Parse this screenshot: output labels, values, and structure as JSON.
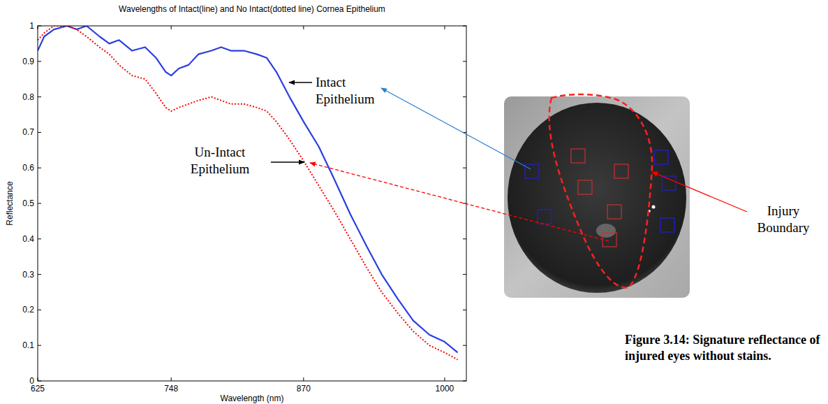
{
  "chart_data": {
    "type": "line",
    "title": "Wavelengths of Intact(line) and No Intact(dotted line) Cornea Epithelium",
    "x_label": "Wavelength (nm)",
    "y_label": "Reflectance",
    "x": [
      625,
      631,
      640,
      652,
      661,
      670,
      682,
      691,
      700,
      712,
      724,
      734,
      743,
      748,
      755,
      764,
      773,
      785,
      794,
      803,
      815,
      827,
      836,
      845,
      857,
      870,
      884,
      898,
      913,
      928,
      942,
      957,
      971,
      986,
      1000,
      1012
    ],
    "series": [
      {
        "name": "Intact",
        "color": "#2b3fe0",
        "line_style": "solid",
        "values": [
          0.93,
          0.97,
          0.99,
          1.0,
          0.99,
          1.0,
          0.97,
          0.95,
          0.96,
          0.93,
          0.94,
          0.91,
          0.87,
          0.86,
          0.88,
          0.89,
          0.92,
          0.93,
          0.94,
          0.93,
          0.93,
          0.92,
          0.91,
          0.87,
          0.8,
          0.73,
          0.66,
          0.57,
          0.47,
          0.38,
          0.3,
          0.23,
          0.17,
          0.13,
          0.11,
          0.08
        ]
      },
      {
        "name": "Un-Intact",
        "color": "#ff0000",
        "line_style": "dotted",
        "values": [
          0.96,
          0.98,
          1.0,
          1.0,
          0.99,
          0.97,
          0.94,
          0.92,
          0.89,
          0.86,
          0.85,
          0.81,
          0.77,
          0.76,
          0.77,
          0.78,
          0.79,
          0.8,
          0.79,
          0.78,
          0.78,
          0.77,
          0.76,
          0.73,
          0.68,
          0.62,
          0.55,
          0.48,
          0.4,
          0.32,
          0.25,
          0.19,
          0.14,
          0.1,
          0.08,
          0.06
        ]
      }
    ],
    "xlim": [
      625,
      1020
    ],
    "ylim": [
      0,
      1
    ],
    "xticks": [
      625,
      748,
      870,
      1000
    ],
    "yticks": [
      0,
      0.1,
      0.2,
      0.3,
      0.4,
      0.5,
      0.6,
      0.7,
      0.8,
      0.9,
      1
    ],
    "grid": false,
    "annotations": [
      "Intact Epithelium",
      "Un-Intact Epithelium",
      "Injury Boundary"
    ]
  },
  "caption": "Figure 3.14: Signature reflectance of injured eyes without stains."
}
